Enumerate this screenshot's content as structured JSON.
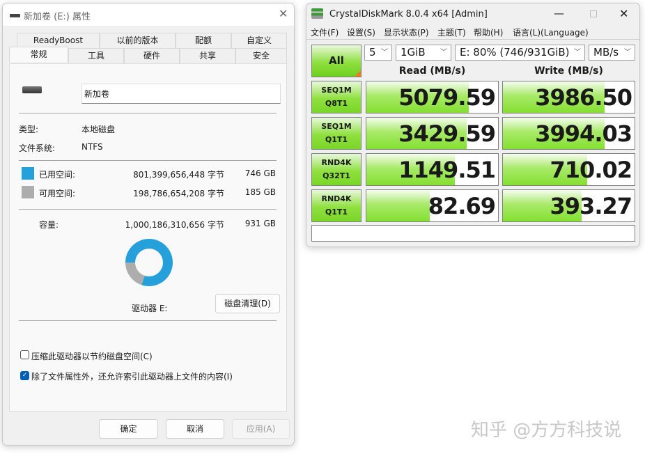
{
  "props": {
    "title": "新加卷 (E:) 属性",
    "tabs_row1": [
      "ReadyBoost",
      "以前的版本",
      "配额",
      "自定义"
    ],
    "tabs_row2": [
      "常规",
      "工具",
      "硬件",
      "共享",
      "安全"
    ],
    "volume_name": "新加卷",
    "type_label": "类型:",
    "type_value": "本地磁盘",
    "fs_label": "文件系统:",
    "fs_value": "NTFS",
    "used_label": "已用空间:",
    "used_bytes": "801,399,656,448 字节",
    "used_gb": "746 GB",
    "free_label": "可用空间:",
    "free_bytes": "198,786,654,208 字节",
    "free_gb": "185 GB",
    "cap_label": "容量:",
    "cap_bytes": "1,000,186,310,656 字节",
    "cap_gb": "931 GB",
    "used_fraction": 0.8,
    "used_color": "#26a0da",
    "free_color": "#adadad",
    "drive_label": "驱动器 E:",
    "cleanup_button": "磁盘清理(D)",
    "compress_label": "压缩此驱动器以节约磁盘空间(C)",
    "compress_checked": false,
    "index_label": "除了文件属性外，还允许索引此驱动器上文件的内容(I)",
    "index_checked": true,
    "ok": "确定",
    "cancel": "取消",
    "apply": "应用(A)"
  },
  "cdm": {
    "title": "CrystalDiskMark 8.0.4 x64 [Admin]",
    "menu": [
      "文件(F)",
      "设置(S)",
      "显示状态(P)",
      "主题(T)",
      "帮助(H)",
      "语言(L)(Language)"
    ],
    "all_button": "All",
    "count": "5",
    "size": "1GiB",
    "drive": "E: 80% (746/931GiB)",
    "unit": "MB/s",
    "read_header": "Read (MB/s)",
    "write_header": "Write (MB/s)",
    "rows": [
      {
        "l1": "SEQ1M",
        "l2": "Q8T1",
        "read": "5079.59",
        "write": "3986.50",
        "read_fill": 0.78,
        "write_fill": 0.77
      },
      {
        "l1": "SEQ1M",
        "l2": "Q1T1",
        "read": "3429.59",
        "write": "3994.03",
        "read_fill": 0.76,
        "write_fill": 0.77
      },
      {
        "l1": "RND4K",
        "l2": "Q32T1",
        "read": "1149.51",
        "write": "710.02",
        "read_fill": 0.67,
        "write_fill": 0.64
      },
      {
        "l1": "RND4K",
        "l2": "Q1T1",
        "read": "82.69",
        "write": "393.27",
        "read_fill": 0.48,
        "write_fill": 0.6
      }
    ],
    "comment": ""
  },
  "watermark": "知乎 @方方科技说"
}
